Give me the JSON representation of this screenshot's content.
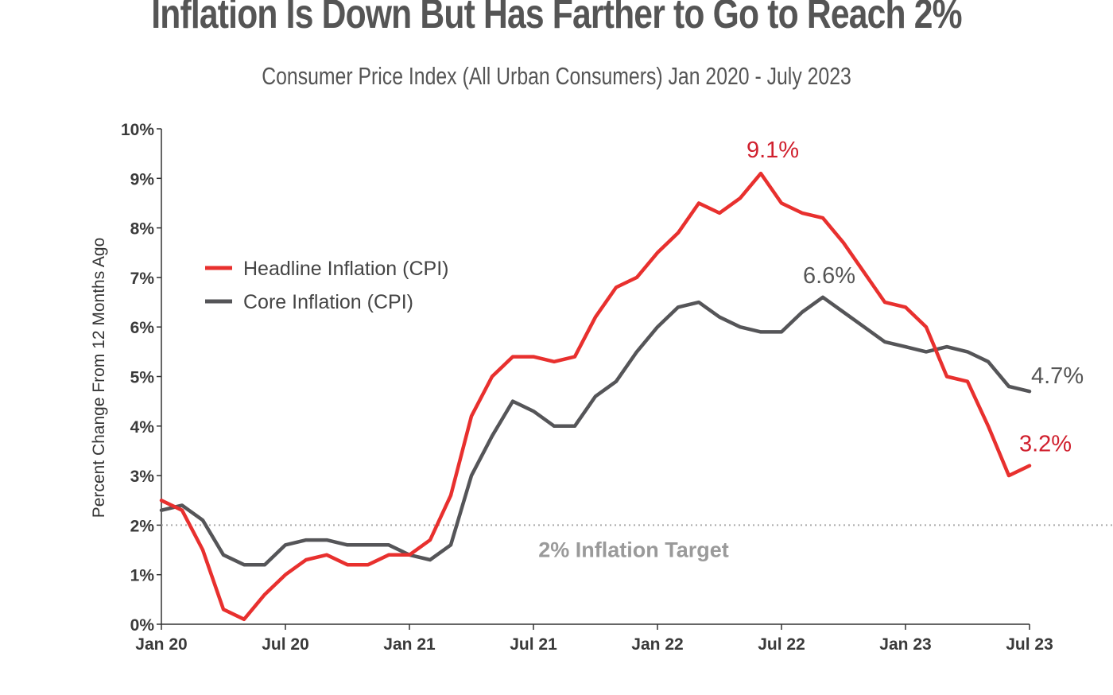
{
  "title": "Inflation Is Down But Has Farther to Go to Reach 2%",
  "subtitle": "Consumer Price Index (All Urban Consumers) Jan 2020 - July 2023",
  "chart_data": {
    "type": "line",
    "title": "Inflation Is Down But Has Farther to Go to Reach 2%",
    "subtitle": "Consumer Price Index (All Urban Consumers) Jan 2020 - July 2023",
    "xlabel": "",
    "ylabel": "Percent Change From 12 Months Ago",
    "ylim": [
      0,
      10
    ],
    "yticks": [
      "0%",
      "1%",
      "2%",
      "3%",
      "4%",
      "5%",
      "6%",
      "7%",
      "8%",
      "9%",
      "10%"
    ],
    "xtick_labels": [
      "Jan 20",
      "Jul 20",
      "Jan 21",
      "Jul 21",
      "Jan 22",
      "Jul 22",
      "Jan 23",
      "Jul 23"
    ],
    "x": [
      "2020-01",
      "2020-02",
      "2020-03",
      "2020-04",
      "2020-05",
      "2020-06",
      "2020-07",
      "2020-08",
      "2020-09",
      "2020-10",
      "2020-11",
      "2020-12",
      "2021-01",
      "2021-02",
      "2021-03",
      "2021-04",
      "2021-05",
      "2021-06",
      "2021-07",
      "2021-08",
      "2021-09",
      "2021-10",
      "2021-11",
      "2021-12",
      "2022-01",
      "2022-02",
      "2022-03",
      "2022-04",
      "2022-05",
      "2022-06",
      "2022-07",
      "2022-08",
      "2022-09",
      "2022-10",
      "2022-11",
      "2022-12",
      "2023-01",
      "2023-02",
      "2023-03",
      "2023-04",
      "2023-05",
      "2023-06",
      "2023-07"
    ],
    "series": [
      {
        "name": "Headline Inflation (CPI)",
        "color": "#e8302e",
        "values": [
          2.5,
          2.3,
          1.5,
          0.3,
          0.1,
          0.6,
          1.0,
          1.3,
          1.4,
          1.2,
          1.2,
          1.4,
          1.4,
          1.7,
          2.6,
          4.2,
          5.0,
          5.4,
          5.4,
          5.3,
          5.4,
          6.2,
          6.8,
          7.0,
          7.5,
          7.9,
          8.5,
          8.3,
          8.6,
          9.1,
          8.5,
          8.3,
          8.2,
          7.7,
          7.1,
          6.5,
          6.4,
          6.0,
          5.0,
          4.9,
          4.0,
          3.0,
          3.2
        ]
      },
      {
        "name": "Core Inflation (CPI)",
        "color": "#555558",
        "values": [
          2.3,
          2.4,
          2.1,
          1.4,
          1.2,
          1.2,
          1.6,
          1.7,
          1.7,
          1.6,
          1.6,
          1.6,
          1.4,
          1.3,
          1.6,
          3.0,
          3.8,
          4.5,
          4.3,
          4.0,
          4.0,
          4.6,
          4.9,
          5.5,
          6.0,
          6.4,
          6.5,
          6.2,
          6.0,
          5.9,
          5.9,
          6.3,
          6.6,
          6.3,
          6.0,
          5.7,
          5.6,
          5.5,
          5.6,
          5.5,
          5.3,
          4.8,
          4.7
        ]
      }
    ],
    "target": {
      "value": 2,
      "label": "2% Inflation Target",
      "color": "#9a9a9a"
    },
    "annotations": [
      {
        "text": "9.1%",
        "x": "2022-06",
        "y": 9.1,
        "color": "#d0202e"
      },
      {
        "text": "6.6%",
        "x": "2022-09",
        "y": 6.6,
        "color": "#555555"
      },
      {
        "text": "4.7%",
        "x": "2023-07",
        "y": 4.7,
        "color": "#555555"
      },
      {
        "text": "3.2%",
        "x": "2023-07",
        "y": 3.2,
        "color": "#d0202e"
      }
    ],
    "legend_position": "left",
    "grid": false
  }
}
